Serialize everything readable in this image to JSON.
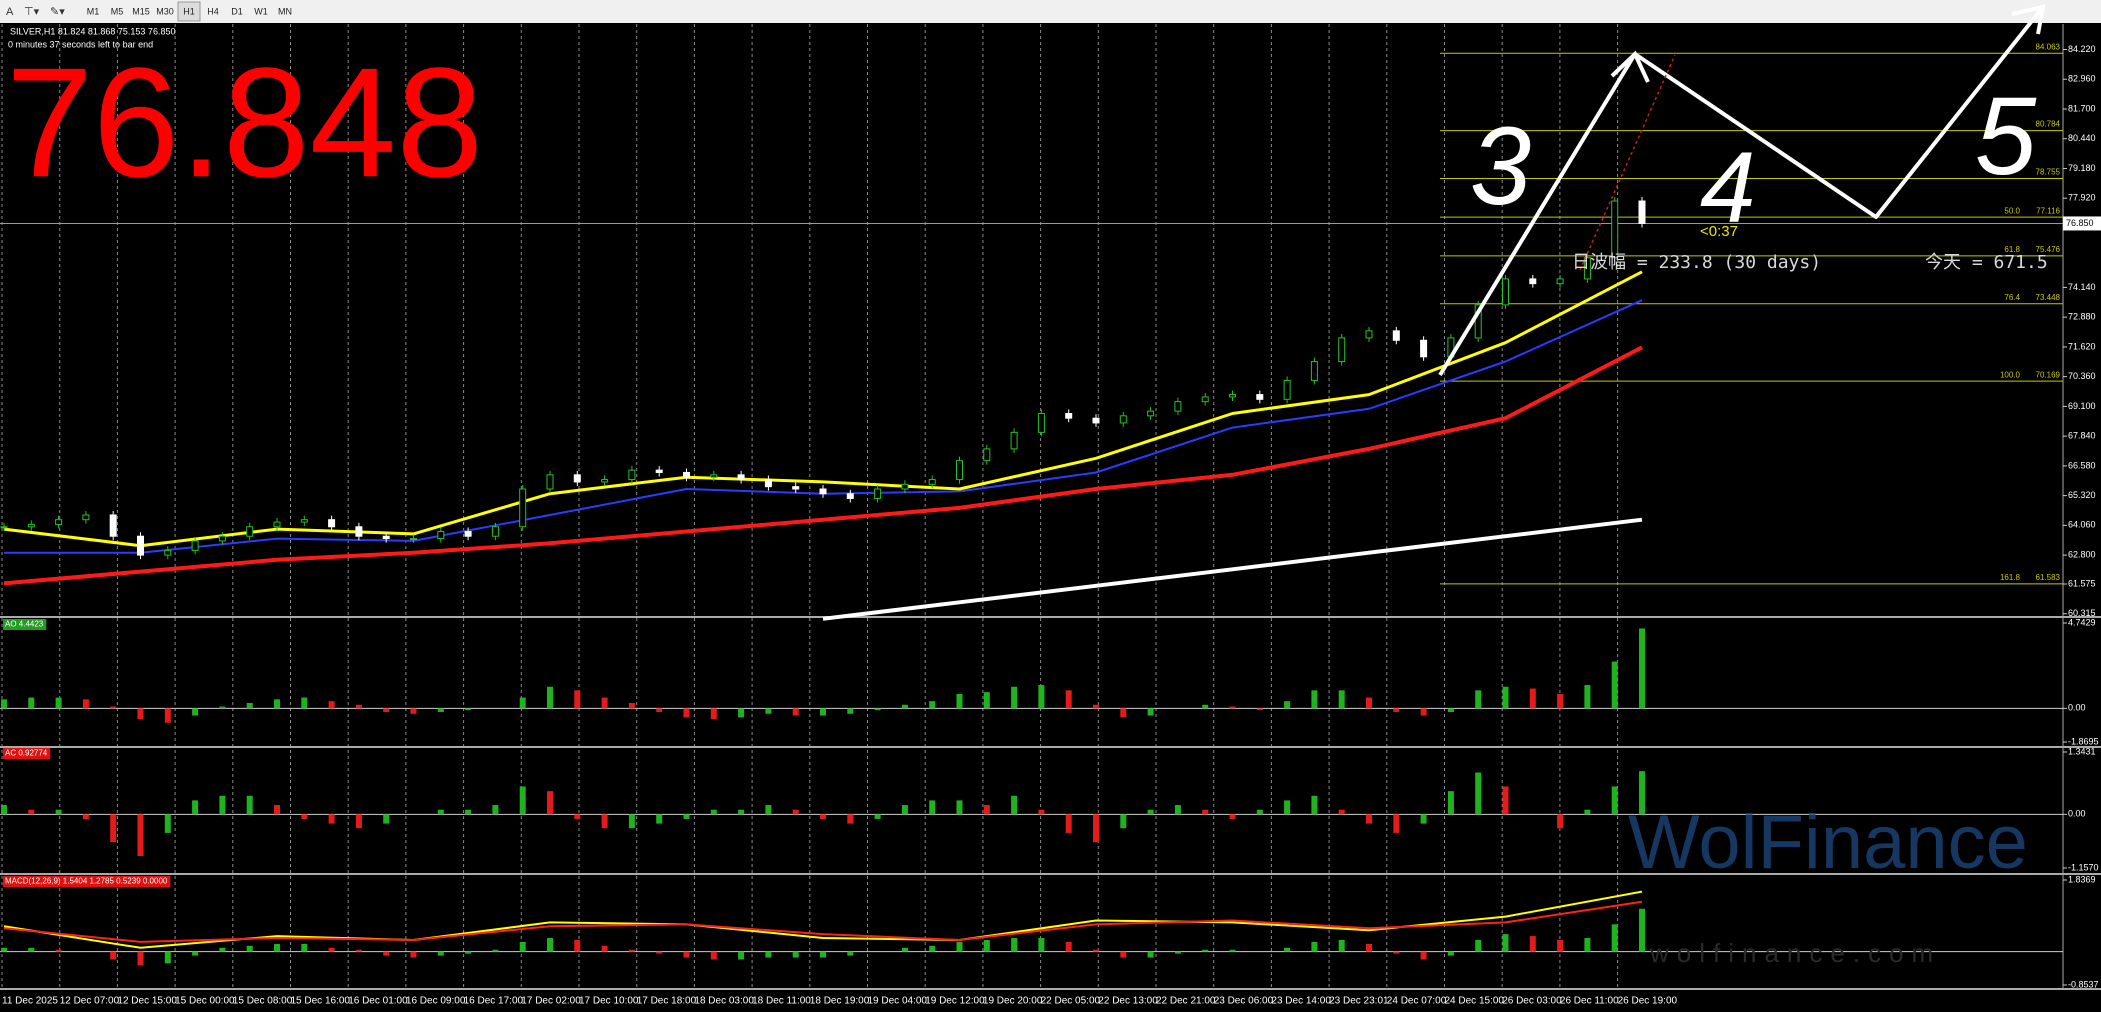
{
  "toolbar": {
    "buttons": [
      "M1",
      "M5",
      "M15",
      "M30",
      "H1",
      "H4",
      "D1",
      "W1",
      "MN"
    ],
    "active": "H1"
  },
  "chart": {
    "symbol_info": "SILVER,H1  81.824 81.868 75.153 76.850",
    "timer": "0 minutes 37 seconds left to bar end",
    "big_price": "76.848",
    "price_axis": {
      "ylim": [
        60.22,
        85.3
      ],
      "ticks": [
        {
          "value": 84.22,
          "label": "84.220"
        },
        {
          "value": 82.96,
          "label": "82.960"
        },
        {
          "value": 81.7,
          "label": "81.700"
        },
        {
          "value": 80.44,
          "label": "80.440"
        },
        {
          "value": 79.18,
          "label": "79.180"
        },
        {
          "value": 77.92,
          "label": "77.920"
        },
        {
          "value": 74.14,
          "label": "74.140"
        },
        {
          "value": 72.88,
          "label": "72.880"
        },
        {
          "value": 71.62,
          "label": "71.620"
        },
        {
          "value": 70.36,
          "label": "70.360"
        },
        {
          "value": 69.1,
          "label": "69.100"
        },
        {
          "value": 67.84,
          "label": "67.840"
        },
        {
          "value": 66.58,
          "label": "66.580"
        },
        {
          "value": 65.32,
          "label": "65.320"
        },
        {
          "value": 64.06,
          "label": "64.060"
        },
        {
          "value": 62.8,
          "label": "62.800"
        },
        {
          "value": 61.575,
          "label": "61.575"
        },
        {
          "value": 60.315,
          "label": "60.315"
        }
      ],
      "current": {
        "value": 76.85,
        "label": "76.850"
      }
    },
    "time_labels": [
      "11 Dec 2025",
      "12 Dec 07:00",
      "12 Dec 15:00",
      "15 Dec 00:00",
      "15 Dec 08:00",
      "15 Dec 16:00",
      "16 Dec 01:00",
      "16 Dec 09:00",
      "16 Dec 17:00",
      "17 Dec 02:00",
      "17 Dec 10:00",
      "17 Dec 18:00",
      "18 Dec 03:00",
      "18 Dec 11:00",
      "18 Dec 19:00",
      "19 Dec 04:00",
      "19 Dec 12:00",
      "19 Dec 20:00",
      "22 Dec 05:00",
      "22 Dec 13:00",
      "22 Dec 21:00",
      "23 Dec 06:00",
      "23 Dec 14:00",
      "23 Dec 23:01",
      "24 Dec 07:00",
      "24 Dec 15:00",
      "26 Dec 03:00",
      "26 Dec 11:00",
      "26 Dec 19:00"
    ],
    "candles": {
      "up_color": "#22c322",
      "down_color": "#ffffff",
      "closes": [
        64.0,
        64.1,
        64.3,
        64.5,
        63.6,
        62.8,
        63.0,
        63.4,
        63.6,
        64.0,
        64.2,
        64.3,
        64.0,
        63.6,
        63.5,
        63.5,
        63.8,
        63.6,
        64.0,
        65.6,
        66.2,
        65.9,
        66.0,
        66.4,
        66.3,
        66.1,
        66.2,
        66.0,
        65.7,
        65.6,
        65.4,
        65.2,
        65.6,
        65.8,
        66.0,
        66.8,
        67.3,
        68.0,
        68.8,
        68.6,
        68.4,
        68.7,
        68.9,
        69.3,
        69.5,
        69.6,
        69.4,
        70.2,
        71.0,
        72.0,
        72.3,
        71.9,
        71.2,
        72.0,
        73.4,
        74.5,
        74.3,
        74.5,
        75.4,
        77.8,
        76.85
      ]
    },
    "lines": [
      {
        "color": "#ffffff",
        "width": 4,
        "values": [
          null,
          null,
          null,
          null,
          null,
          null,
          60.1,
          60.8,
          61.5,
          62.2,
          62.9,
          63.6,
          64.3
        ]
      },
      {
        "color": "#ff1a1a",
        "width": 4,
        "values": [
          61.6,
          62.1,
          62.6,
          62.9,
          63.3,
          63.8,
          64.3,
          64.8,
          65.6,
          66.2,
          67.3,
          68.6,
          71.6
        ]
      },
      {
        "color": "#2b3bff",
        "width": 2,
        "values": [
          62.9,
          62.9,
          63.5,
          63.4,
          64.5,
          65.6,
          65.4,
          65.5,
          66.3,
          68.2,
          69.0,
          71.0,
          73.6
        ]
      },
      {
        "color": "#ffff00",
        "width": 3,
        "values": [
          63.9,
          63.2,
          63.9,
          63.7,
          65.4,
          66.1,
          65.9,
          65.6,
          66.9,
          68.8,
          69.6,
          71.8,
          74.8
        ]
      }
    ],
    "fib_color": "#c8c800",
    "fib_levels": [
      {
        "price": 84.063
      },
      {
        "price": 80.784
      },
      {
        "price": 78.755
      },
      {
        "level": "50.0",
        "price": 77.116
      },
      {
        "level": "61.8",
        "price": 75.476
      },
      {
        "level": "76.4",
        "price": 73.448
      },
      {
        "level": "100.0",
        "price": 70.169
      },
      {
        "level": "161.8",
        "price": 61.583
      }
    ],
    "annotations": {
      "wave_3": "3",
      "wave_4": "4",
      "wave_5": "5",
      "countdown": "<0:37",
      "daily_range": "日波幅 = 233.8  (30 days)",
      "today": "今天 = 671.5"
    },
    "watermark": {
      "brand": "WolFinance",
      "url": "wolfinance.com"
    }
  },
  "panels": [
    {
      "label": "AO 4.4423",
      "label_color": "#1f9e1f",
      "ylim": [
        -1.8695,
        4.7429
      ],
      "ticks": [
        4.7429,
        {
          "value": 0,
          "label": "0.00"
        },
        -1.8695
      ],
      "values": [
        0.5,
        0.6,
        0.6,
        0.5,
        0.1,
        -0.6,
        -0.8,
        -0.4,
        0.1,
        0.3,
        0.5,
        0.6,
        0.4,
        0.2,
        -0.2,
        -0.3,
        -0.2,
        -0.1,
        0.0,
        0.6,
        1.2,
        1.0,
        0.6,
        0.3,
        -0.2,
        -0.5,
        -0.6,
        -0.5,
        -0.3,
        -0.4,
        -0.4,
        -0.3,
        -0.1,
        0.2,
        0.4,
        0.8,
        0.9,
        1.2,
        1.3,
        1.0,
        0.2,
        -0.5,
        -0.4,
        0.0,
        0.2,
        0.1,
        -0.1,
        0.4,
        1.0,
        1.0,
        0.6,
        -0.2,
        -0.4,
        -0.2,
        1.0,
        1.2,
        1.1,
        0.8,
        1.3,
        2.6,
        4.44
      ]
    },
    {
      "label": "AC 0.92774",
      "label_color": "#e01010",
      "ylim": [
        -1.157,
        1.3431
      ],
      "ticks": [
        1.3431,
        {
          "value": 0,
          "label": "0.00"
        },
        {
          "value": -1.157,
          "label": "-1.1570"
        }
      ],
      "values": [
        0.2,
        0.1,
        0.1,
        -0.1,
        -0.6,
        -0.9,
        -0.4,
        0.3,
        0.4,
        0.4,
        0.2,
        -0.1,
        -0.2,
        -0.3,
        -0.2,
        0.0,
        0.1,
        0.1,
        0.2,
        0.6,
        0.5,
        -0.1,
        -0.3,
        -0.3,
        -0.2,
        -0.1,
        0.1,
        0.1,
        0.2,
        0.1,
        -0.1,
        -0.2,
        -0.1,
        0.2,
        0.3,
        0.3,
        0.2,
        0.4,
        0.1,
        -0.4,
        -0.6,
        -0.3,
        0.1,
        0.2,
        0.1,
        -0.1,
        0.1,
        0.3,
        0.4,
        0.1,
        -0.2,
        -0.4,
        -0.2,
        0.5,
        0.9,
        0.6,
        0.0,
        -0.3,
        0.1,
        0.6,
        0.93
      ]
    },
    {
      "label": "MACD(12,26,9) 1.5404 1.2785 0.5239 0.0000",
      "label_color": "#e01010",
      "ylim": [
        -0.8537,
        1.8369
      ],
      "ticks": [
        1.8369,
        -0.8537
      ],
      "values": [
        0.1,
        0.1,
        0.05,
        0,
        -0.2,
        -0.35,
        -0.3,
        -0.1,
        0.1,
        0.15,
        0.2,
        0.2,
        0.1,
        0.05,
        -0.1,
        -0.15,
        -0.1,
        -0.05,
        0.05,
        0.25,
        0.35,
        0.3,
        0.15,
        0.05,
        -0.05,
        -0.15,
        -0.2,
        -0.2,
        -0.15,
        -0.15,
        -0.15,
        -0.1,
        0,
        0.1,
        0.15,
        0.25,
        0.3,
        0.35,
        0.35,
        0.25,
        0.05,
        -0.15,
        -0.15,
        -0.05,
        0.05,
        0.05,
        0,
        0.1,
        0.25,
        0.3,
        0.2,
        -0.05,
        -0.2,
        -0.1,
        0.3,
        0.45,
        0.4,
        0.3,
        0.35,
        0.7,
        1.1
      ],
      "lines": [
        {
          "color": "#ffff00",
          "values": [
            0.65,
            0.1,
            0.4,
            0.3,
            0.75,
            0.7,
            0.35,
            0.3,
            0.8,
            0.75,
            0.55,
            0.9,
            1.54
          ]
        },
        {
          "color": "#ff2020",
          "values": [
            0.6,
            0.25,
            0.35,
            0.3,
            0.65,
            0.7,
            0.45,
            0.3,
            0.7,
            0.8,
            0.6,
            0.75,
            1.28
          ]
        }
      ]
    }
  ]
}
